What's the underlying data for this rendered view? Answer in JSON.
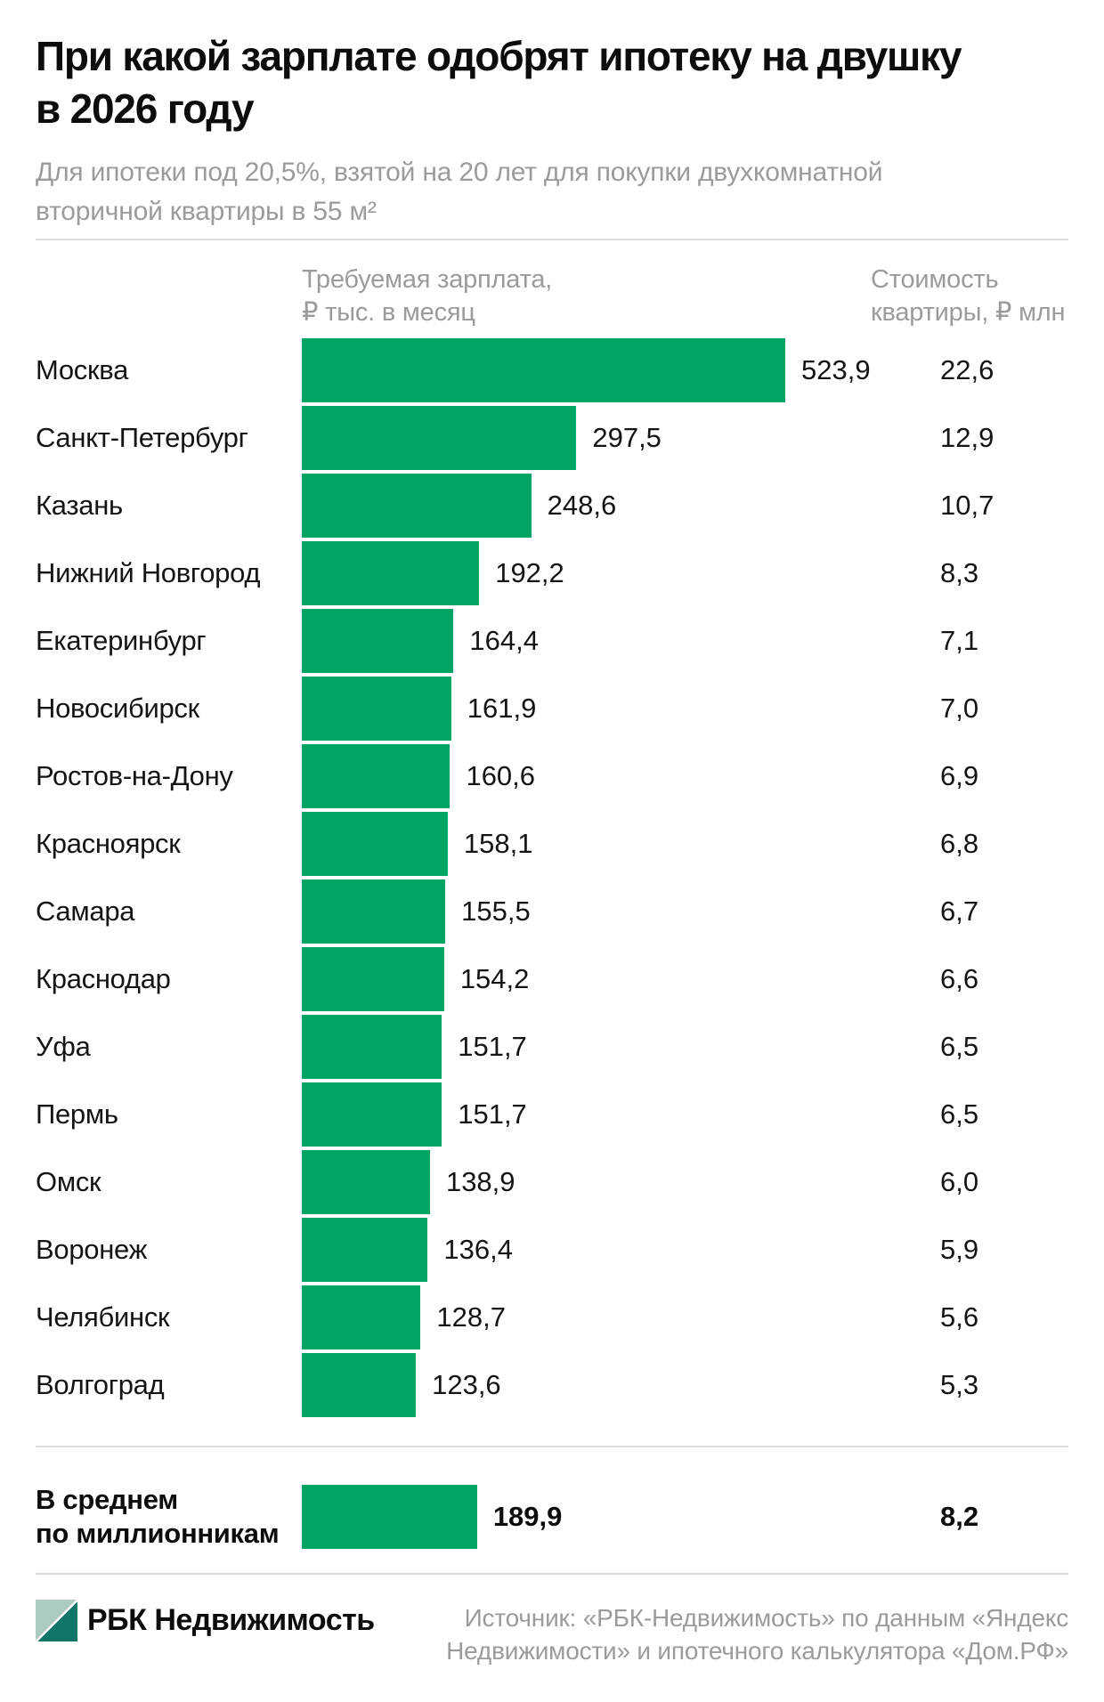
{
  "header": {
    "title_lines": [
      "При какой зарплате одобрят ипотеку на двушку",
      "в 2026 году"
    ],
    "subtitle_lines": [
      "Для ипотеки под 20,5%, взятой на 20 лет для покупки двухкомнатной",
      "вторичной квартиры в 55 м²"
    ]
  },
  "columns": {
    "salary_header_lines": [
      "Требуемая зарплата,",
      "₽ тыс. в месяц"
    ],
    "price_header_lines": [
      "Стоимость",
      "квартиры, ₽ млн"
    ]
  },
  "chart_data": {
    "type": "bar",
    "orientation": "horizontal",
    "title": "При какой зарплате одобрят ипотеку на двушку в 2026 году",
    "subtitle": "Для ипотеки под 20,5%, взятой на 20 лет для покупки двухкомнатной вторичной квартиры в 55 м²",
    "categories": [
      "Москва",
      "Санкт-Петербург",
      "Казань",
      "Нижний Новгород",
      "Екатеринбург",
      "Новосибирск",
      "Ростов-на-Дону",
      "Красноярск",
      "Самара",
      "Краснодар",
      "Уфа",
      "Пермь",
      "Омск",
      "Воронеж",
      "Челябинск",
      "Волгоград"
    ],
    "series": [
      {
        "name": "Требуемая зарплата, ₽ тыс. в месяц",
        "values": [
          523.9,
          297.5,
          248.6,
          192.2,
          164.4,
          161.9,
          160.6,
          158.1,
          155.5,
          154.2,
          151.7,
          151.7,
          138.9,
          136.4,
          128.7,
          123.6
        ]
      },
      {
        "name": "Стоимость квартиры, ₽ млн",
        "values": [
          22.6,
          12.9,
          10.7,
          8.3,
          7.1,
          7.0,
          6.9,
          6.8,
          6.7,
          6.6,
          6.5,
          6.5,
          6.0,
          5.9,
          5.6,
          5.3
        ]
      }
    ],
    "average_row": {
      "label": "В среднем по миллионникам",
      "salary": 189.9,
      "price": 8.2
    },
    "xlim": [
      0,
      523.9
    ],
    "value_labels": "on",
    "grid": false,
    "legend": "none",
    "decimal_separator": ","
  },
  "summary": {
    "label_lines": [
      "В среднем",
      "по миллионникам"
    ]
  },
  "footer": {
    "brand": "РБК Недвижимость",
    "source_lines": [
      "Источник: «РБК-Недвижимость» по данным «Яндекс",
      "Недвижимости» и ипотечного калькулятора «Дом.РФ»"
    ]
  },
  "colors": {
    "bar_green": "#00a564",
    "logo_light": "#abccbf",
    "logo_dark": "#0e7568",
    "text_dark": "#141414",
    "text_gray": "#9b9b9b",
    "divider": "#dcdcdc"
  }
}
